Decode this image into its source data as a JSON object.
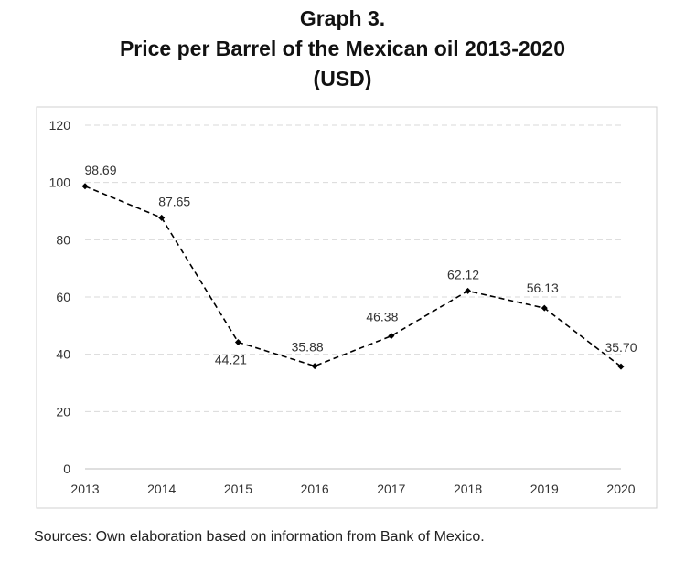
{
  "title_lines": [
    "Graph 3.",
    "Price per Barrel of the Mexican oil 2013-2020",
    "(USD)"
  ],
  "source": "Sources: Own elaboration based on information from Bank of Mexico.",
  "chart_data": {
    "type": "line",
    "x": [
      "2013",
      "2014",
      "2015",
      "2016",
      "2017",
      "2018",
      "2019",
      "2020"
    ],
    "series": [
      {
        "values": [
          98.69,
          87.65,
          44.21,
          35.88,
          46.38,
          62.12,
          56.13,
          35.7
        ],
        "labels": [
          "98.69",
          "87.65",
          "44.21",
          "35.88",
          "46.38",
          "62.12",
          "56.13",
          "35.70"
        ],
        "line_style": "dashed",
        "marker": "diamond",
        "color": "#000000"
      }
    ],
    "ylim": [
      0,
      120
    ],
    "yticks": [
      0,
      20,
      40,
      60,
      80,
      100,
      120
    ],
    "grid": "horizontal-dashed",
    "xlabel": "",
    "ylabel": ""
  }
}
